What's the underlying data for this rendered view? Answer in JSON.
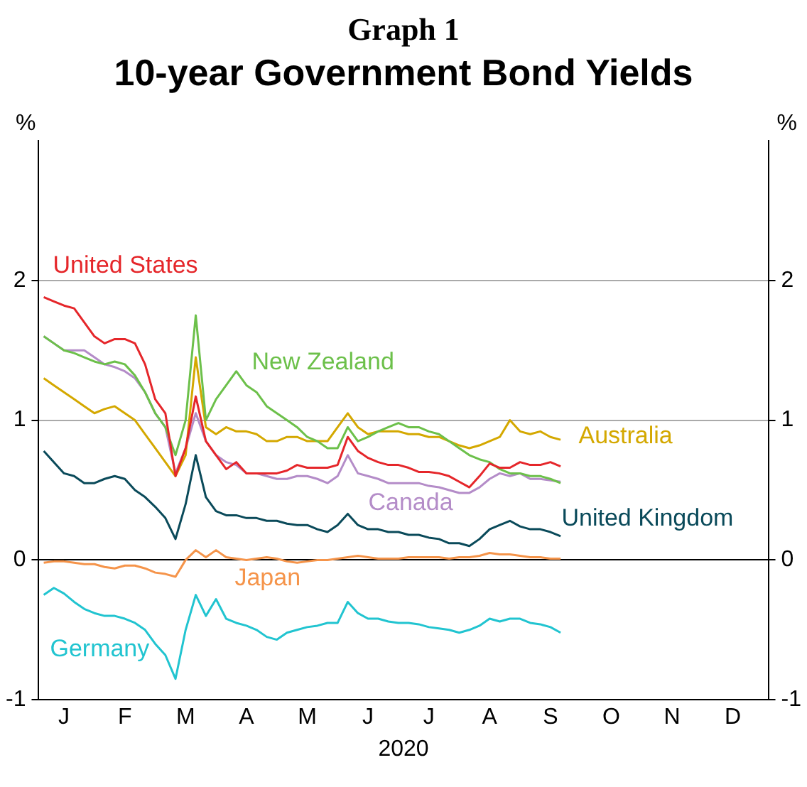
{
  "chart_data": {
    "type": "line",
    "title": "Graph 1",
    "subtitle": "10-year Government Bond Yields",
    "ylabel": "%",
    "y2label": "%",
    "xlabel": "2020",
    "categories": [
      null,
      null,
      "J",
      null,
      null,
      null,
      null,
      null,
      "F",
      null,
      null,
      null,
      null,
      null,
      "M",
      null,
      null,
      null,
      null,
      null,
      "A",
      null,
      null,
      null,
      null,
      null,
      "M",
      null,
      null,
      null,
      null,
      null,
      "J",
      null,
      null,
      null,
      null,
      null,
      "J",
      null,
      null,
      null,
      null,
      null,
      "A",
      null,
      null,
      null,
      null,
      null,
      "S",
      null,
      null,
      null,
      null,
      null,
      "O",
      null,
      null,
      null,
      null,
      null,
      "N",
      null,
      null,
      null,
      null,
      null,
      "D",
      null,
      null,
      null
    ],
    "series": [
      {
        "name": "United States",
        "color": "#e5262a",
        "values": [
          1.88,
          1.85,
          1.82,
          1.8,
          1.7,
          1.6,
          1.55,
          1.58,
          1.58,
          1.55,
          1.4,
          1.15,
          1.05,
          0.6,
          0.8,
          1.17,
          0.85,
          0.75,
          0.65,
          0.7,
          0.62,
          0.62,
          0.62,
          0.62,
          0.64,
          0.68,
          0.66,
          0.66,
          0.66,
          0.68,
          0.88,
          0.78,
          0.73,
          0.7,
          0.68,
          0.68,
          0.66,
          0.63,
          0.63,
          0.62,
          0.6,
          0.56,
          0.52,
          0.6,
          0.69,
          0.66,
          0.66,
          0.7,
          0.68,
          0.68,
          0.7,
          0.67,
          null,
          null,
          null,
          null,
          null,
          null,
          null,
          null,
          null,
          null,
          null,
          null,
          null,
          null,
          null,
          null,
          null,
          null,
          null,
          null
        ]
      },
      {
        "name": "New Zealand",
        "color": "#6cc04a",
        "values": [
          1.6,
          1.55,
          1.5,
          1.48,
          1.45,
          1.42,
          1.4,
          1.42,
          1.4,
          1.32,
          1.2,
          1.05,
          0.95,
          0.75,
          1.0,
          1.75,
          1.0,
          1.15,
          1.25,
          1.35,
          1.25,
          1.2,
          1.1,
          1.05,
          1.0,
          0.95,
          0.88,
          0.85,
          0.8,
          0.8,
          0.95,
          0.85,
          0.88,
          0.92,
          0.95,
          0.98,
          0.95,
          0.95,
          0.92,
          0.9,
          0.85,
          0.8,
          0.75,
          0.72,
          0.7,
          0.65,
          0.62,
          0.62,
          0.6,
          0.6,
          0.58,
          0.55,
          null,
          null,
          null,
          null,
          null,
          null,
          null,
          null,
          null,
          null,
          null,
          null,
          null,
          null,
          null,
          null,
          null,
          null,
          null,
          null
        ]
      },
      {
        "name": "Australia",
        "color": "#d4a800",
        "values": [
          1.3,
          1.25,
          1.2,
          1.15,
          1.1,
          1.05,
          1.08,
          1.1,
          1.05,
          1.0,
          0.9,
          0.8,
          0.7,
          0.6,
          0.75,
          1.45,
          0.95,
          0.9,
          0.95,
          0.92,
          0.92,
          0.9,
          0.85,
          0.85,
          0.88,
          0.88,
          0.85,
          0.85,
          0.85,
          0.95,
          1.05,
          0.95,
          0.9,
          0.92,
          0.92,
          0.92,
          0.9,
          0.9,
          0.88,
          0.88,
          0.85,
          0.82,
          0.8,
          0.82,
          0.85,
          0.88,
          1.0,
          0.92,
          0.9,
          0.92,
          0.88,
          0.86,
          null,
          null,
          null,
          null,
          null,
          null,
          null,
          null,
          null,
          null,
          null,
          null,
          null,
          null,
          null,
          null,
          null,
          null,
          null,
          null
        ]
      },
      {
        "name": "Canada",
        "color": "#b48cc8",
        "values": [
          1.6,
          1.55,
          1.5,
          1.5,
          1.5,
          1.45,
          1.4,
          1.38,
          1.35,
          1.3,
          1.2,
          1.05,
          0.95,
          0.62,
          0.8,
          1.05,
          0.85,
          0.75,
          0.7,
          0.68,
          0.62,
          0.62,
          0.6,
          0.58,
          0.58,
          0.6,
          0.6,
          0.58,
          0.55,
          0.6,
          0.75,
          0.62,
          0.6,
          0.58,
          0.55,
          0.55,
          0.55,
          0.55,
          0.53,
          0.52,
          0.5,
          0.48,
          0.48,
          0.52,
          0.58,
          0.62,
          0.6,
          0.62,
          0.58,
          0.58,
          0.57,
          0.56,
          null,
          null,
          null,
          null,
          null,
          null,
          null,
          null,
          null,
          null,
          null,
          null,
          null,
          null,
          null,
          null,
          null,
          null,
          null,
          null
        ]
      },
      {
        "name": "United Kingdom",
        "color": "#0a4a5a",
        "values": [
          0.78,
          0.7,
          0.62,
          0.6,
          0.55,
          0.55,
          0.58,
          0.6,
          0.58,
          0.5,
          0.45,
          0.38,
          0.3,
          0.15,
          0.4,
          0.75,
          0.45,
          0.35,
          0.32,
          0.32,
          0.3,
          0.3,
          0.28,
          0.28,
          0.26,
          0.25,
          0.25,
          0.22,
          0.2,
          0.25,
          0.33,
          0.25,
          0.22,
          0.22,
          0.2,
          0.2,
          0.18,
          0.18,
          0.16,
          0.15,
          0.12,
          0.12,
          0.1,
          0.15,
          0.22,
          0.25,
          0.28,
          0.24,
          0.22,
          0.22,
          0.2,
          0.17,
          null,
          null,
          null,
          null,
          null,
          null,
          null,
          null,
          null,
          null,
          null,
          null,
          null,
          null,
          null,
          null,
          null,
          null,
          null,
          null
        ]
      },
      {
        "name": "Japan",
        "color": "#f5944a",
        "values": [
          -0.02,
          -0.01,
          -0.01,
          -0.02,
          -0.03,
          -0.03,
          -0.05,
          -0.06,
          -0.04,
          -0.04,
          -0.06,
          -0.09,
          -0.1,
          -0.12,
          0.0,
          0.07,
          0.02,
          0.07,
          0.02,
          0.01,
          0.0,
          0.01,
          0.02,
          0.01,
          -0.01,
          -0.02,
          -0.01,
          0.0,
          0.0,
          0.01,
          0.02,
          0.03,
          0.02,
          0.01,
          0.01,
          0.01,
          0.02,
          0.02,
          0.02,
          0.02,
          0.01,
          0.02,
          0.02,
          0.03,
          0.05,
          0.04,
          0.04,
          0.03,
          0.02,
          0.02,
          0.01,
          0.01,
          null,
          null,
          null,
          null,
          null,
          null,
          null,
          null,
          null,
          null,
          null,
          null,
          null,
          null,
          null,
          null,
          null,
          null,
          null,
          null
        ]
      },
      {
        "name": "Germany",
        "color": "#21c4d0",
        "values": [
          -0.25,
          -0.2,
          -0.24,
          -0.3,
          -0.35,
          -0.38,
          -0.4,
          -0.4,
          -0.42,
          -0.45,
          -0.5,
          -0.6,
          -0.68,
          -0.85,
          -0.5,
          -0.25,
          -0.4,
          -0.28,
          -0.42,
          -0.45,
          -0.47,
          -0.5,
          -0.55,
          -0.57,
          -0.52,
          -0.5,
          -0.48,
          -0.47,
          -0.45,
          -0.45,
          -0.3,
          -0.38,
          -0.42,
          -0.42,
          -0.44,
          -0.45,
          -0.45,
          -0.46,
          -0.48,
          -0.49,
          -0.5,
          -0.52,
          -0.5,
          -0.47,
          -0.42,
          -0.44,
          -0.42,
          -0.42,
          -0.45,
          -0.46,
          -0.48,
          -0.52,
          null,
          null,
          null,
          null,
          null,
          null,
          null,
          null,
          null,
          null,
          null,
          null,
          null,
          null,
          null,
          null,
          null,
          null,
          null,
          null
        ]
      }
    ],
    "ylim": [
      -1,
      3
    ],
    "yticks": [
      -1,
      0,
      1,
      2
    ],
    "y2lim": [
      -1,
      3
    ],
    "y2ticks": [
      -1,
      0,
      1,
      2
    ],
    "grid": "y",
    "legend": false,
    "marker": "none",
    "line_style": "solid"
  }
}
